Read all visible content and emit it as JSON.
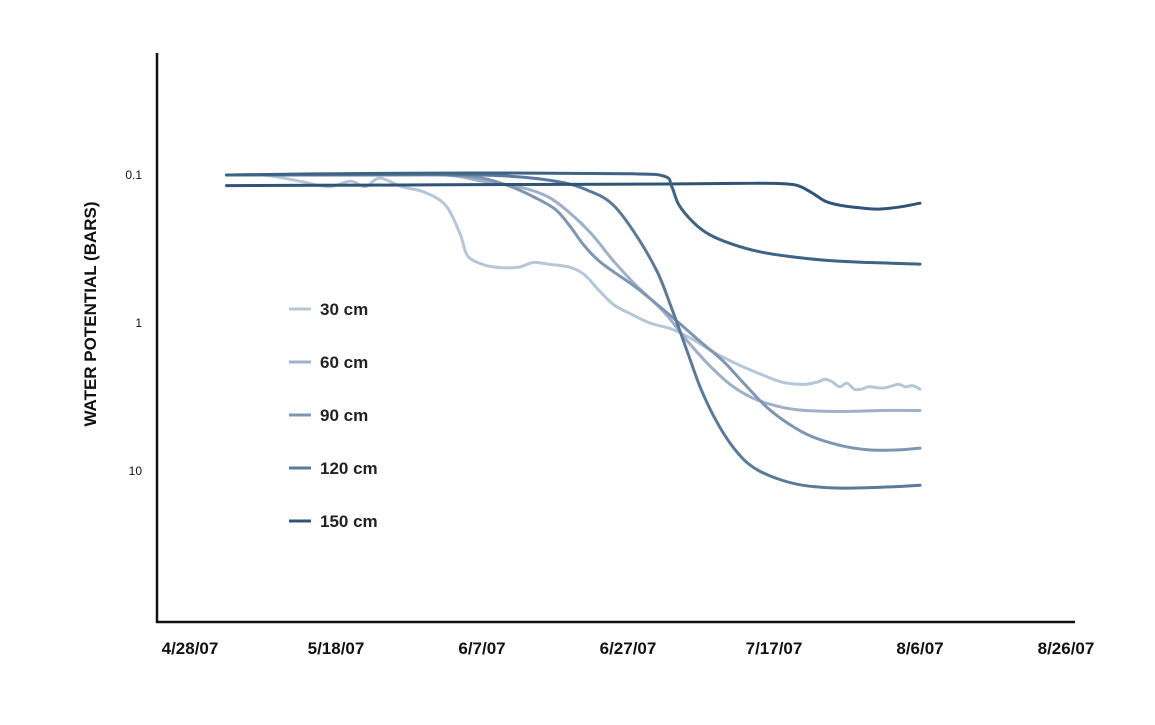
{
  "chart_data": {
    "type": "line",
    "title": "",
    "xlabel": "",
    "ylabel": "WATER POTENTIAL (BARS)",
    "x_tick_labels": [
      "4/28/07",
      "5/18/07",
      "6/7/07",
      "6/27/07",
      "7/17/07",
      "8/6/07",
      "8/26/07"
    ],
    "x_ticks": [
      "2007-04-28",
      "2007-05-18",
      "2007-06-07",
      "2007-06-27",
      "2007-07-17",
      "2007-08-06",
      "2007-08-26"
    ],
    "xlim": [
      "2007-04-24",
      "2007-09-01"
    ],
    "y_tick_labels": [
      "0.1",
      "1",
      "10"
    ],
    "y_ticks": [
      0.1,
      1,
      10
    ],
    "y_scale": "log",
    "y_inverted": true,
    "ylim": [
      0.01,
      200
    ],
    "grid": false,
    "legend_position": "center-left",
    "series": [
      {
        "name": "30 cm",
        "color": "#b6c6d9",
        "x": [
          "2007-05-03",
          "2007-05-08",
          "2007-05-13",
          "2007-05-17",
          "2007-05-20",
          "2007-05-22",
          "2007-05-24",
          "2007-05-27",
          "2007-05-30",
          "2007-06-02",
          "2007-06-04",
          "2007-06-05",
          "2007-06-07",
          "2007-06-09",
          "2007-06-12",
          "2007-06-14",
          "2007-06-16",
          "2007-06-19",
          "2007-06-21",
          "2007-06-23",
          "2007-06-25",
          "2007-06-27",
          "2007-06-30",
          "2007-07-03",
          "2007-07-06",
          "2007-07-09",
          "2007-07-12",
          "2007-07-15",
          "2007-07-18",
          "2007-07-21",
          "2007-07-23",
          "2007-07-24",
          "2007-07-25",
          "2007-07-26",
          "2007-07-27",
          "2007-07-28",
          "2007-07-29",
          "2007-07-30",
          "2007-08-01",
          "2007-08-03",
          "2007-08-04",
          "2007-08-05",
          "2007-08-06"
        ],
        "y": [
          0.1,
          0.1,
          0.11,
          0.12,
          0.11,
          0.12,
          0.105,
          0.12,
          0.13,
          0.16,
          0.25,
          0.35,
          0.4,
          0.42,
          0.42,
          0.39,
          0.4,
          0.42,
          0.47,
          0.6,
          0.75,
          0.85,
          1.0,
          1.1,
          1.3,
          1.6,
          1.9,
          2.2,
          2.5,
          2.6,
          2.5,
          2.4,
          2.5,
          2.7,
          2.55,
          2.8,
          2.8,
          2.7,
          2.75,
          2.6,
          2.7,
          2.65,
          2.8
        ]
      },
      {
        "name": "60 cm",
        "color": "#9fb0c8",
        "x": [
          "2007-05-03",
          "2007-05-13",
          "2007-05-23",
          "2007-06-02",
          "2007-06-07",
          "2007-06-12",
          "2007-06-16",
          "2007-06-19",
          "2007-06-22",
          "2007-06-25",
          "2007-06-28",
          "2007-07-02",
          "2007-07-05",
          "2007-07-08",
          "2007-07-11",
          "2007-07-14",
          "2007-07-17",
          "2007-07-20",
          "2007-07-24",
          "2007-07-28",
          "2007-08-01",
          "2007-08-06"
        ],
        "y": [
          0.1,
          0.1,
          0.1,
          0.1,
          0.11,
          0.12,
          0.14,
          0.18,
          0.25,
          0.38,
          0.55,
          0.85,
          1.3,
          1.9,
          2.6,
          3.2,
          3.6,
          3.85,
          3.95,
          3.95,
          3.9,
          3.9
        ]
      },
      {
        "name": "90 cm",
        "color": "#7f96b3",
        "x": [
          "2007-05-03",
          "2007-05-13",
          "2007-05-23",
          "2007-06-02",
          "2007-06-07",
          "2007-06-11",
          "2007-06-14",
          "2007-06-17",
          "2007-06-19",
          "2007-06-21",
          "2007-06-23",
          "2007-06-25",
          "2007-06-28",
          "2007-07-01",
          "2007-07-04",
          "2007-07-07",
          "2007-07-10",
          "2007-07-13",
          "2007-07-16",
          "2007-07-19",
          "2007-07-22",
          "2007-07-26",
          "2007-07-30",
          "2007-08-03",
          "2007-08-06"
        ],
        "y": [
          0.1,
          0.1,
          0.1,
          0.1,
          0.105,
          0.12,
          0.14,
          0.17,
          0.22,
          0.3,
          0.38,
          0.45,
          0.57,
          0.75,
          1.0,
          1.35,
          1.8,
          2.6,
          3.7,
          4.8,
          5.8,
          6.7,
          7.2,
          7.2,
          7.0
        ]
      },
      {
        "name": "120 cm",
        "color": "#5a7a9b",
        "x": [
          "2007-05-03",
          "2007-05-18",
          "2007-06-07",
          "2007-06-17",
          "2007-06-22",
          "2007-06-25",
          "2007-06-28",
          "2007-07-01",
          "2007-07-03",
          "2007-07-05",
          "2007-07-07",
          "2007-07-09",
          "2007-07-11",
          "2007-07-13",
          "2007-07-15",
          "2007-07-18",
          "2007-07-21",
          "2007-07-25",
          "2007-07-29",
          "2007-08-02",
          "2007-08-06"
        ],
        "y": [
          0.1,
          0.1,
          0.1,
          0.11,
          0.13,
          0.16,
          0.25,
          0.45,
          0.8,
          1.5,
          2.8,
          4.5,
          6.5,
          8.5,
          10.0,
          11.5,
          12.5,
          13.0,
          13.0,
          12.8,
          12.5
        ]
      },
      {
        "name": "150 cm",
        "color": "#2f5478",
        "x": [
          "2007-05-03",
          "2007-05-23",
          "2007-06-12",
          "2007-07-02",
          "2007-07-12",
          "2007-07-17",
          "2007-07-20",
          "2007-07-22",
          "2007-07-24",
          "2007-07-26",
          "2007-07-28",
          "2007-07-31",
          "2007-08-03",
          "2007-08-06"
        ],
        "y": [
          0.118,
          0.117,
          0.116,
          0.115,
          0.114,
          0.114,
          0.117,
          0.13,
          0.15,
          0.16,
          0.165,
          0.17,
          0.165,
          0.155
        ]
      }
    ]
  },
  "overlay_series": [
    {
      "color": "#3d6385",
      "x": [
        "2007-05-03",
        "2007-05-18",
        "2007-06-07",
        "2007-06-27",
        "2007-07-02",
        "2007-07-03",
        "2007-07-04",
        "2007-07-06",
        "2007-07-08",
        "2007-07-11",
        "2007-07-15",
        "2007-07-20",
        "2007-07-25",
        "2007-07-30",
        "2007-08-06"
      ],
      "y": [
        0.1,
        0.098,
        0.097,
        0.098,
        0.102,
        0.12,
        0.16,
        0.21,
        0.25,
        0.29,
        0.33,
        0.36,
        0.38,
        0.39,
        0.4
      ]
    }
  ]
}
